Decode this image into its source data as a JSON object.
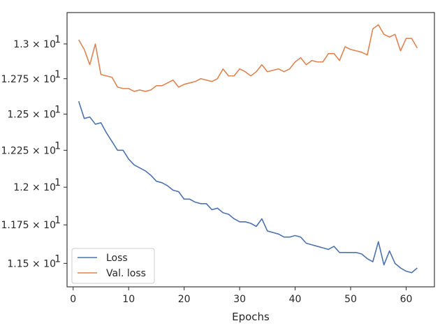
{
  "chart_data": {
    "type": "line",
    "xlabel": "Epochs",
    "ylabel": "",
    "xlim": [
      -1.1,
      65.1
    ],
    "ylim": [
      11.35,
      13.23
    ],
    "x_ticks": [
      0,
      10,
      20,
      30,
      40,
      50,
      60
    ],
    "y_ticks": [
      {
        "value": 11.5,
        "label": "1.15 × 10¹"
      },
      {
        "value": 11.75,
        "label": "1.175 × 10¹"
      },
      {
        "value": 12.0,
        "label": "1.2 × 10¹"
      },
      {
        "value": 12.25,
        "label": "1.225 × 10¹"
      },
      {
        "value": 12.5,
        "label": "1.25 × 10¹"
      },
      {
        "value": 12.75,
        "label": "1.275 × 10¹"
      },
      {
        "value": 13.0,
        "label": "1.3 × 10¹"
      }
    ],
    "grid": false,
    "legend_position": "bottom-left",
    "x": [
      1,
      2,
      3,
      4,
      5,
      6,
      7,
      8,
      9,
      10,
      11,
      12,
      13,
      14,
      15,
      16,
      17,
      18,
      19,
      20,
      21,
      22,
      23,
      24,
      25,
      26,
      27,
      28,
      29,
      30,
      31,
      32,
      33,
      34,
      35,
      36,
      37,
      38,
      39,
      40,
      41,
      42,
      43,
      44,
      45,
      46,
      47,
      48,
      49,
      50,
      51,
      52,
      53,
      54,
      55,
      56,
      57,
      58,
      59,
      60,
      61,
      62
    ],
    "series": [
      {
        "name": "Loss",
        "color": "#4c72b0",
        "values": [
          12.59,
          12.47,
          12.48,
          12.43,
          12.44,
          12.37,
          12.31,
          12.25,
          12.25,
          12.19,
          12.15,
          12.13,
          12.11,
          12.08,
          12.04,
          12.03,
          12.01,
          11.98,
          11.97,
          11.92,
          11.92,
          11.9,
          11.89,
          11.89,
          11.85,
          11.86,
          11.83,
          11.82,
          11.79,
          11.77,
          11.77,
          11.76,
          11.74,
          11.79,
          11.71,
          11.7,
          11.69,
          11.67,
          11.67,
          11.68,
          11.67,
          11.63,
          11.62,
          11.61,
          11.6,
          11.59,
          11.61,
          11.57,
          11.57,
          11.57,
          11.57,
          11.56,
          11.53,
          11.51,
          11.64,
          11.49,
          11.58,
          11.5,
          11.47,
          11.45,
          11.44,
          11.47
        ]
      },
      {
        "name": "Val. loss",
        "color": "#dd8452",
        "values": [
          13.03,
          12.96,
          12.85,
          13.0,
          12.78,
          12.77,
          12.76,
          12.69,
          12.68,
          12.68,
          12.66,
          12.67,
          12.66,
          12.67,
          12.7,
          12.7,
          12.72,
          12.74,
          12.69,
          12.71,
          12.72,
          12.73,
          12.75,
          12.74,
          12.73,
          12.75,
          12.82,
          12.77,
          12.77,
          12.82,
          12.8,
          12.77,
          12.8,
          12.85,
          12.8,
          12.81,
          12.82,
          12.8,
          12.82,
          12.87,
          12.9,
          12.85,
          12.88,
          12.87,
          12.87,
          12.93,
          12.93,
          12.88,
          12.98,
          12.96,
          12.95,
          12.94,
          12.92,
          13.11,
          13.14,
          13.07,
          13.05,
          13.07,
          12.95,
          13.04,
          13.04,
          12.97
        ]
      }
    ]
  }
}
